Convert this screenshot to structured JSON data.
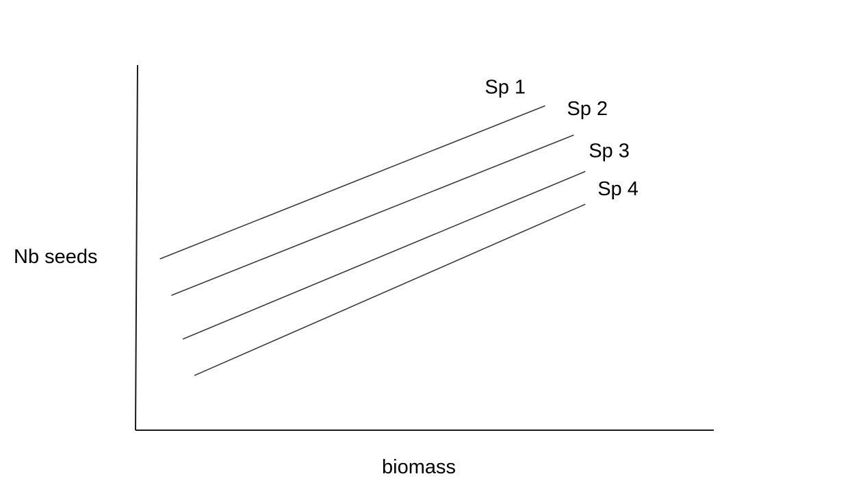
{
  "chart_data": {
    "type": "line",
    "title": "",
    "xlabel": "biomass",
    "ylabel": "Nb seeds",
    "grid": false,
    "legend": "none",
    "xlim": [
      0,
      100
    ],
    "ylim": [
      0,
      100
    ],
    "series": [
      {
        "name": "Sp 1",
        "x": [
          4,
          71
        ],
        "y": [
          47,
          89
        ]
      },
      {
        "name": "Sp 2",
        "x": [
          6,
          76
        ],
        "y": [
          37,
          81
        ]
      },
      {
        "name": "Sp 3",
        "x": [
          8,
          78
        ],
        "y": [
          25,
          71
        ]
      },
      {
        "name": "Sp 4",
        "x": [
          10,
          78
        ],
        "y": [
          15,
          62
        ]
      }
    ]
  }
}
